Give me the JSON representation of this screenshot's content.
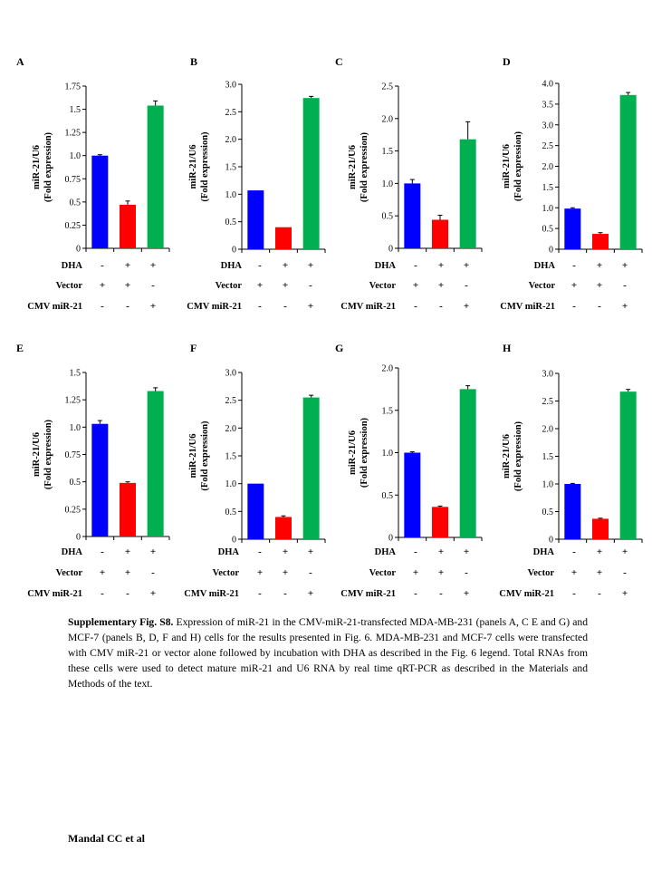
{
  "chart_data": [
    {
      "panel": "A",
      "type": "bar",
      "ylabel": "miR-21/U6",
      "ylabel2": "(Fold expression)",
      "ylim": [
        0,
        1.75
      ],
      "yticks": [
        "0",
        "0.25",
        "0.5",
        "0.75",
        "1.0",
        "1.25",
        "1.5",
        "1.75"
      ],
      "values": [
        1.0,
        0.47,
        1.54
      ],
      "errors": [
        0.01,
        0.04,
        0.05
      ],
      "colors": [
        "#0000ff",
        "#ff0000",
        "#00b050"
      ],
      "rows": [
        {
          "label": "DHA",
          "marks": [
            "-",
            "+",
            "+"
          ]
        },
        {
          "label": "Vector",
          "marks": [
            "+",
            "+",
            "-"
          ]
        },
        {
          "label": "CMV miR-21",
          "marks": [
            "-",
            "-",
            "+"
          ]
        }
      ]
    },
    {
      "panel": "B",
      "type": "bar",
      "ylabel": "miR-21/U6",
      "ylabel2": "(Fold expression)",
      "ylim": [
        0,
        3.0
      ],
      "yticks": [
        "0",
        "0.5",
        "1.0",
        "1.5",
        "2.0",
        "2.5",
        "3.0"
      ],
      "values": [
        1.07,
        0.4,
        2.75
      ],
      "errors": [
        0,
        0,
        0.03
      ],
      "colors": [
        "#0000ff",
        "#ff0000",
        "#00b050"
      ],
      "rows": [
        {
          "label": "DHA",
          "marks": [
            "-",
            "+",
            "+"
          ]
        },
        {
          "label": "Vector",
          "marks": [
            "+",
            "+",
            "-"
          ]
        },
        {
          "label": "CMV miR-21",
          "marks": [
            "-",
            "-",
            "+"
          ]
        }
      ]
    },
    {
      "panel": "C",
      "type": "bar",
      "ylabel": "miR-21/U6",
      "ylabel2": "(Fold expression)",
      "ylim": [
        0,
        2.5
      ],
      "yticks": [
        "0",
        "0.5",
        "1.0",
        "1.5",
        "2.0",
        "2.5"
      ],
      "values": [
        1.0,
        0.44,
        1.68
      ],
      "errors": [
        0.06,
        0.07,
        0.27
      ],
      "colors": [
        "#0000ff",
        "#ff0000",
        "#00b050"
      ],
      "rows": [
        {
          "label": "DHA",
          "marks": [
            "-",
            "+",
            "+"
          ]
        },
        {
          "label": "Vector",
          "marks": [
            "+",
            "+",
            "-"
          ]
        },
        {
          "label": "CMV miR-21",
          "marks": [
            "-",
            "-",
            "+"
          ]
        }
      ]
    },
    {
      "panel": "D",
      "type": "bar",
      "ylabel": "miR-21/U6",
      "ylabel2": "(Fold expression)",
      "ylim": [
        0,
        4.0
      ],
      "yticks": [
        "0",
        "0.5",
        "1.0",
        "1.5",
        "2.0",
        "2.5",
        "3.0",
        "3.5",
        "4.0"
      ],
      "values": [
        0.98,
        0.37,
        3.72
      ],
      "errors": [
        0.02,
        0.03,
        0.06
      ],
      "colors": [
        "#0000ff",
        "#ff0000",
        "#00b050"
      ],
      "rows": [
        {
          "label": "DHA",
          "marks": [
            "-",
            "+",
            "+"
          ]
        },
        {
          "label": "Vector",
          "marks": [
            "+",
            "+",
            "-"
          ]
        },
        {
          "label": "CMV miR-21",
          "marks": [
            "-",
            "-",
            "+"
          ]
        }
      ]
    },
    {
      "panel": "E",
      "type": "bar",
      "ylabel": "miR-21/U6",
      "ylabel2": "(Fold expression)",
      "ylim": [
        0,
        1.5
      ],
      "yticks": [
        "0",
        "0.25",
        "0.5",
        "0.75",
        "1.0",
        "1.25",
        "1.5"
      ],
      "values": [
        1.03,
        0.49,
        1.33
      ],
      "errors": [
        0.03,
        0.01,
        0.03
      ],
      "colors": [
        "#0000ff",
        "#ff0000",
        "#00b050"
      ],
      "rows": [
        {
          "label": "DHA",
          "marks": [
            "-",
            "+",
            "+"
          ]
        },
        {
          "label": "Vector",
          "marks": [
            "+",
            "+",
            "-"
          ]
        },
        {
          "label": "CMV miR-21",
          "marks": [
            "-",
            "-",
            "+"
          ]
        }
      ]
    },
    {
      "panel": "F",
      "type": "bar",
      "ylabel": "miR-21/U6",
      "ylabel2": "(Fold expression)",
      "ylim": [
        0,
        3.0
      ],
      "yticks": [
        "0",
        "0.5",
        "1.0",
        "1.5",
        "2.0",
        "2.5",
        "3.0"
      ],
      "values": [
        1.0,
        0.4,
        2.55
      ],
      "errors": [
        0,
        0.02,
        0.04
      ],
      "colors": [
        "#0000ff",
        "#ff0000",
        "#00b050"
      ],
      "rows": [
        {
          "label": "DHA",
          "marks": [
            "-",
            "+",
            "+"
          ]
        },
        {
          "label": "Vector",
          "marks": [
            "+",
            "+",
            "-"
          ]
        },
        {
          "label": "CMV miR-21",
          "marks": [
            "-",
            "-",
            "+"
          ]
        }
      ]
    },
    {
      "panel": "G",
      "type": "bar",
      "ylabel": "miR-21/U6",
      "ylabel2": "(Fold expression)",
      "ylim": [
        0,
        2.0
      ],
      "yticks": [
        "0",
        "0.5",
        "1.0",
        "1.5",
        "2.0"
      ],
      "values": [
        1.0,
        0.36,
        1.75
      ],
      "errors": [
        0.01,
        0.01,
        0.04
      ],
      "colors": [
        "#0000ff",
        "#ff0000",
        "#00b050"
      ],
      "rows": [
        {
          "label": "DHA",
          "marks": [
            "-",
            "+",
            "+"
          ]
        },
        {
          "label": "Vector",
          "marks": [
            "+",
            "+",
            "-"
          ]
        },
        {
          "label": "CMV miR-21",
          "marks": [
            "-",
            "-",
            "+"
          ]
        }
      ]
    },
    {
      "panel": "H",
      "type": "bar",
      "ylabel": "miR-21/U6",
      "ylabel2": "(Fold expression)",
      "ylim": [
        0,
        3.0
      ],
      "yticks": [
        "0",
        "0.5",
        "1.0",
        "1.5",
        "2.0",
        "2.5",
        "3.0"
      ],
      "values": [
        1.0,
        0.37,
        2.67
      ],
      "errors": [
        0.01,
        0.01,
        0.04
      ],
      "colors": [
        "#0000ff",
        "#ff0000",
        "#00b050"
      ],
      "rows": [
        {
          "label": "DHA",
          "marks": [
            "-",
            "+",
            "+"
          ]
        },
        {
          "label": "Vector",
          "marks": [
            "+",
            "+",
            "-"
          ]
        },
        {
          "label": "CMV miR-21",
          "marks": [
            "-",
            "-",
            "+"
          ]
        }
      ]
    }
  ],
  "caption": {
    "lead": "Supplementary Fig. S8.",
    "text": " Expression of miR-21 in the CMV-miR-21-transfected MDA-MB-231 (panels A, C E and G) and MCF-7 (panels B, D, F and H) cells for the results presented in Fig. 6. MDA-MB-231 and MCF-7 cells were transfected with CMV miR-21 or vector alone followed by incubation with DHA as described in the Fig. 6 legend. Total RNAs from these cells were used to detect mature miR-21 and U6 RNA by real time qRT-PCR as described in the Materials and Methods of the text."
  },
  "author": "Mandal CC et al"
}
